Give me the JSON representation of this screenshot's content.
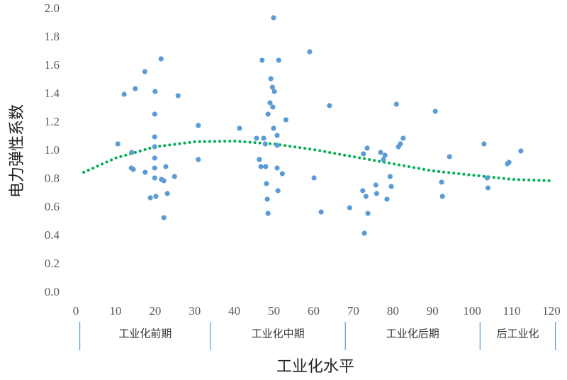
{
  "chart_data": {
    "type": "scatter",
    "x_label": "工业化水平",
    "y_label": "电力弹性系数",
    "xlim": [
      0,
      120
    ],
    "xticks": [
      0,
      10,
      20,
      30,
      40,
      50,
      60,
      70,
      80,
      90,
      100,
      110,
      120
    ],
    "ylim": [
      0,
      2
    ],
    "yticks": [
      {
        "value": 0,
        "label": "0.0"
      },
      {
        "value": 0.2,
        "label": "0.2"
      },
      {
        "value": 0.4,
        "label": "0.4"
      },
      {
        "value": 0.6,
        "label": "0.6"
      },
      {
        "value": 0.8,
        "label": "0.8"
      },
      {
        "value": 1,
        "label": "1.0"
      },
      {
        "value": 1.2,
        "label": "1.2"
      },
      {
        "value": 1.4,
        "label": "1.4"
      },
      {
        "value": 1.6,
        "label": "1.6"
      },
      {
        "value": 1.8,
        "label": "1.8"
      },
      {
        "value": 2,
        "label": "2.0"
      }
    ],
    "grid": false,
    "points": {
      "color": "#5b9bd5",
      "x": [
        10.6,
        12.2,
        15.0,
        17.4,
        14.1,
        14.0,
        14.5,
        17.5,
        18.8,
        20.0,
        19.9,
        19.9,
        19.9,
        19.9,
        19.9,
        19.9,
        20.2,
        21.5,
        21.6,
        22.2,
        22.2,
        22.7,
        23.1,
        24.9,
        25.8,
        30.9,
        30.9,
        41.3,
        45.6,
        46.3,
        46.7,
        47.0,
        47.4,
        47.8,
        47.9,
        48.1,
        48.3,
        48.5,
        48.5,
        49.0,
        49.2,
        49.6,
        49.7,
        50.1,
        49.9,
        49.9,
        50.8,
        50.8,
        51.2,
        50.8,
        51.0,
        52.1,
        53.0,
        59.0,
        60.1,
        61.9,
        64.0,
        69.1,
        72.4,
        72.8,
        73.2,
        73.5,
        73.7,
        72.6,
        75.7,
        75.9,
        76.9,
        77.6,
        78.0,
        78.5,
        79.3,
        79.6,
        80.9,
        81.4,
        81.9,
        82.6,
        90.7,
        92.3,
        92.5,
        94.3,
        103.0,
        103.8,
        104.0,
        108.9,
        109.3,
        112.3
      ],
      "y": [
        1.05,
        1.4,
        1.44,
        1.56,
        0.99,
        0.88,
        0.87,
        0.85,
        0.67,
        1.42,
        1.26,
        1.1,
        1.03,
        0.95,
        0.88,
        0.81,
        0.68,
        1.65,
        0.8,
        0.79,
        0.53,
        0.89,
        0.7,
        0.82,
        1.39,
        1.18,
        0.94,
        1.16,
        1.09,
        0.94,
        0.89,
        1.64,
        1.09,
        1.05,
        0.89,
        0.77,
        0.66,
        0.56,
        1.26,
        1.34,
        1.51,
        1.45,
        1.31,
        1.42,
        1.16,
        1.94,
        1.04,
        1.11,
        1.64,
        0.88,
        0.72,
        0.84,
        1.22,
        1.7,
        0.81,
        0.57,
        1.32,
        0.6,
        0.72,
        0.42,
        0.68,
        1.02,
        0.56,
        0.98,
        0.76,
        0.7,
        0.99,
        0.94,
        0.97,
        0.66,
        0.82,
        0.75,
        1.33,
        1.03,
        1.05,
        1.09,
        1.28,
        0.78,
        0.68,
        0.96,
        1.05,
        0.81,
        0.74,
        0.91,
        0.92,
        1.0
      ]
    },
    "trend": {
      "color": "#00b050",
      "x": [
        2,
        10,
        20,
        30,
        40,
        50,
        60,
        70,
        80,
        90,
        100,
        110,
        120
      ],
      "y": [
        0.85,
        0.95,
        1.03,
        1.065,
        1.07,
        1.05,
        1.01,
        0.96,
        0.91,
        0.86,
        0.83,
        0.8,
        0.79
      ]
    },
    "stages": [
      {
        "label": "工业化前期",
        "from": 1,
        "to": 34
      },
      {
        "label": "工业化中期",
        "from": 34,
        "to": 68
      },
      {
        "label": "工业化后期",
        "from": 68,
        "to": 102
      },
      {
        "label": "后工业化",
        "from": 102,
        "to": 121
      }
    ]
  }
}
